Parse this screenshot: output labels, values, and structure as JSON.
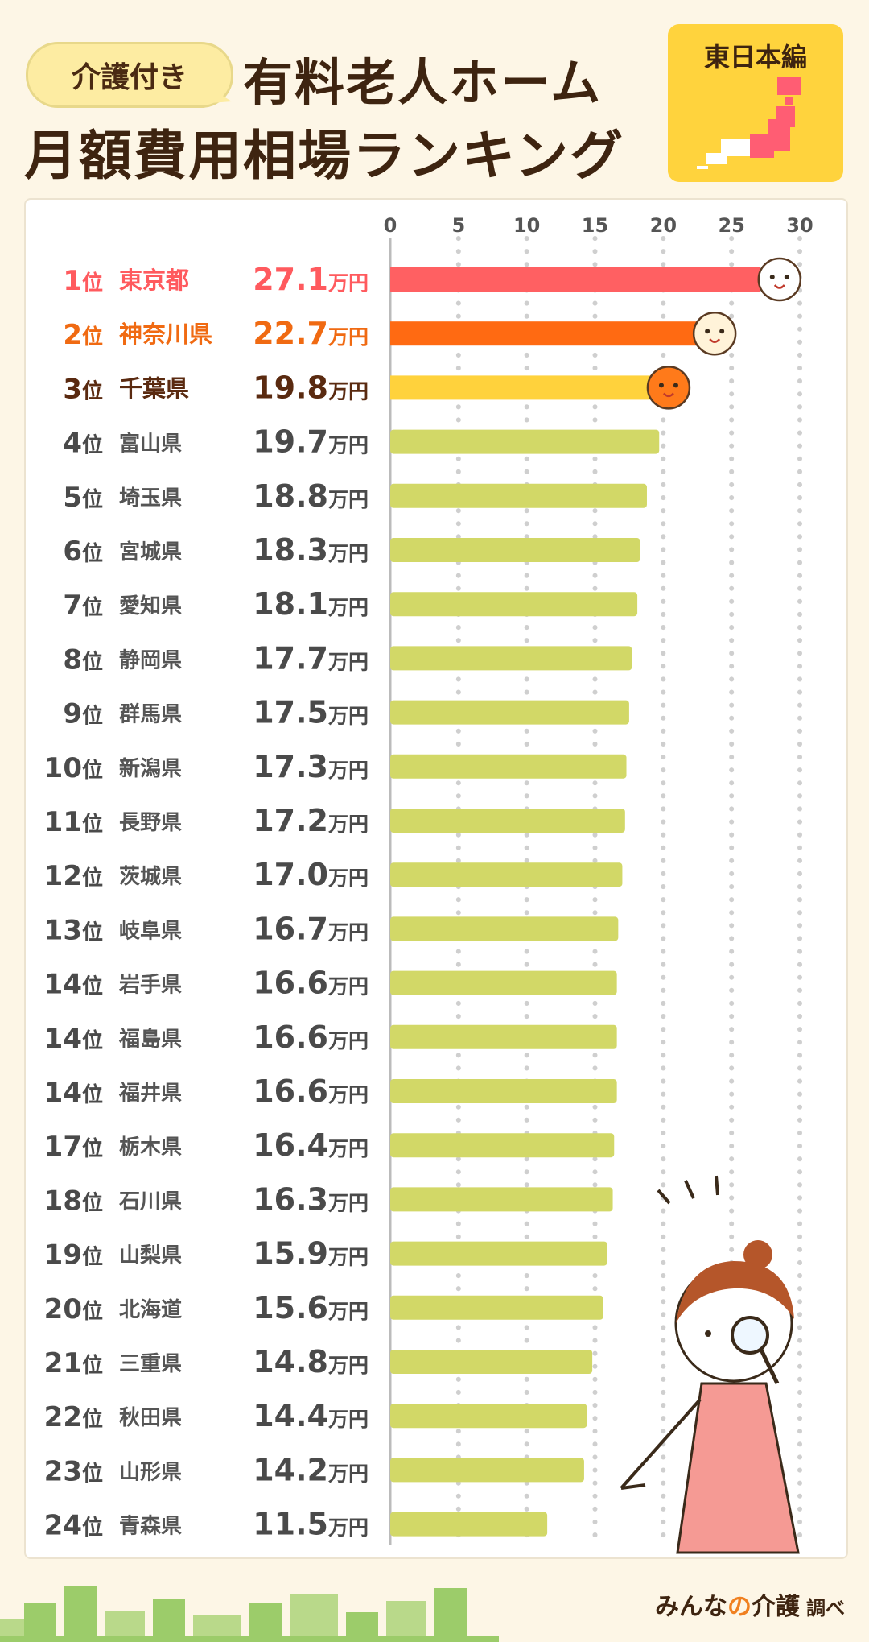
{
  "header": {
    "badge": "介護付き",
    "title_line1": "有料老人ホーム",
    "title_line2": "月額費用相場ランキング",
    "region": "東日本編"
  },
  "footer": {
    "brand_a": "みんな",
    "brand_b": "の",
    "brand_c": "介護",
    "suffix": "調べ"
  },
  "colors": {
    "rank1": "#ff6062",
    "rank2": "#ff6a12",
    "rank3": "#ffd23c",
    "rest": "#d2d867",
    "rank1_text": "#ff5a5e",
    "rank2_text": "#f06a12",
    "rank3_text": "#5a2a10",
    "rest_text": "#4a4a4a"
  },
  "chart_data": {
    "type": "bar",
    "orientation": "horizontal",
    "unit": "万円",
    "xlim": [
      0,
      30
    ],
    "xticks": [
      0,
      5,
      10,
      15,
      20,
      25,
      30
    ],
    "grid": true,
    "rows": [
      {
        "rank": "1位",
        "name": "東京都",
        "value": 27.1,
        "label": "27.1"
      },
      {
        "rank": "2位",
        "name": "神奈川県",
        "value": 22.7,
        "label": "22.7"
      },
      {
        "rank": "3位",
        "name": "千葉県",
        "value": 19.8,
        "label": "19.8"
      },
      {
        "rank": "4位",
        "name": "富山県",
        "value": 19.7,
        "label": "19.7"
      },
      {
        "rank": "5位",
        "name": "埼玉県",
        "value": 18.8,
        "label": "18.8"
      },
      {
        "rank": "6位",
        "name": "宮城県",
        "value": 18.3,
        "label": "18.3"
      },
      {
        "rank": "7位",
        "name": "愛知県",
        "value": 18.1,
        "label": "18.1"
      },
      {
        "rank": "8位",
        "name": "静岡県",
        "value": 17.7,
        "label": "17.7"
      },
      {
        "rank": "9位",
        "name": "群馬県",
        "value": 17.5,
        "label": "17.5"
      },
      {
        "rank": "10位",
        "name": "新潟県",
        "value": 17.3,
        "label": "17.3"
      },
      {
        "rank": "11位",
        "name": "長野県",
        "value": 17.2,
        "label": "17.2"
      },
      {
        "rank": "12位",
        "name": "茨城県",
        "value": 17.0,
        "label": "17.0"
      },
      {
        "rank": "13位",
        "name": "岐阜県",
        "value": 16.7,
        "label": "16.7"
      },
      {
        "rank": "14位",
        "name": "岩手県",
        "value": 16.6,
        "label": "16.6"
      },
      {
        "rank": "14位",
        "name": "福島県",
        "value": 16.6,
        "label": "16.6"
      },
      {
        "rank": "14位",
        "name": "福井県",
        "value": 16.6,
        "label": "16.6"
      },
      {
        "rank": "17位",
        "name": "栃木県",
        "value": 16.4,
        "label": "16.4"
      },
      {
        "rank": "18位",
        "name": "石川県",
        "value": 16.3,
        "label": "16.3"
      },
      {
        "rank": "19位",
        "name": "山梨県",
        "value": 15.9,
        "label": "15.9"
      },
      {
        "rank": "20位",
        "name": "北海道",
        "value": 15.6,
        "label": "15.6"
      },
      {
        "rank": "21位",
        "name": "三重県",
        "value": 14.8,
        "label": "14.8"
      },
      {
        "rank": "22位",
        "name": "秋田県",
        "value": 14.4,
        "label": "14.4"
      },
      {
        "rank": "23位",
        "name": "山形県",
        "value": 14.2,
        "label": "14.2"
      },
      {
        "rank": "24位",
        "name": "青森県",
        "value": 11.5,
        "label": "11.5"
      }
    ]
  }
}
